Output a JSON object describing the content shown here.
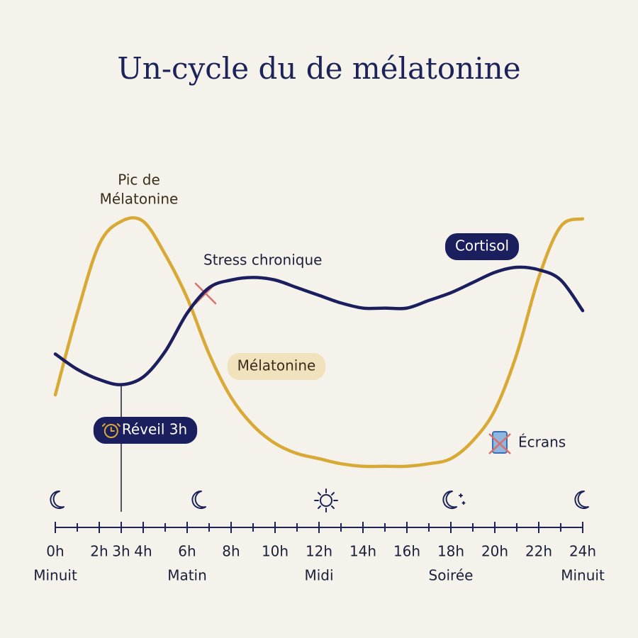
{
  "chart_data": {
    "type": "line",
    "title": "Un-cycle du de mélatonine",
    "x": [
      0,
      1,
      2,
      3,
      4,
      5,
      6,
      7,
      8,
      9,
      10,
      11,
      12,
      13,
      14,
      15,
      16,
      17,
      18,
      19,
      20,
      21,
      22,
      23,
      24
    ],
    "series": [
      {
        "name": "Cortisol",
        "color": "#1b1f5e",
        "values": [
          46,
          40,
          36,
          34,
          37,
          47,
          62,
          72,
          75,
          76,
          75,
          72,
          69,
          66,
          64,
          64,
          64,
          67,
          70,
          74,
          78,
          80,
          79,
          75,
          63
        ]
      },
      {
        "name": "Mélatonine",
        "color": "#d9a935",
        "values": [
          30,
          62,
          89,
          98,
          98,
          85,
          68,
          46,
          29,
          18,
          11,
          7,
          5,
          3,
          2,
          2,
          2,
          3,
          5,
          12,
          24,
          46,
          76,
          96,
          99
        ]
      }
    ],
    "xlim": [
      0,
      24
    ],
    "ylim": [
      0,
      100
    ],
    "xticks": [
      {
        "value": 0,
        "label": "0h"
      },
      {
        "value": 2,
        "label": "2h"
      },
      {
        "value": 3,
        "label": "3h"
      },
      {
        "value": 4,
        "label": "4h"
      },
      {
        "value": 6,
        "label": "6h"
      },
      {
        "value": 8,
        "label": "8h"
      },
      {
        "value": 10,
        "label": "10h"
      },
      {
        "value": 12,
        "label": "12h"
      },
      {
        "value": 14,
        "label": "14h"
      },
      {
        "value": 16,
        "label": "16h"
      },
      {
        "value": 18,
        "label": "18h"
      },
      {
        "value": 20,
        "label": "20h"
      },
      {
        "value": 22,
        "label": "22h"
      },
      {
        "value": 24,
        "label": "24h"
      }
    ],
    "minor_xticks": [
      1,
      5,
      7,
      9,
      11,
      13,
      15,
      17,
      19,
      21,
      23
    ],
    "period_labels": [
      {
        "value": 0,
        "label": "Minuit"
      },
      {
        "value": 6,
        "label": "Matin"
      },
      {
        "value": 12,
        "label": "Midi"
      },
      {
        "value": 18,
        "label": "Soirée"
      },
      {
        "value": 24,
        "label": "Minuit"
      }
    ],
    "annotations": {
      "peak": [
        "Pic de",
        "Mélatonine"
      ],
      "stress": "Stress chronique",
      "wake": {
        "label": "Réveil 3h",
        "x": 3
      },
      "screens": "Écrans"
    }
  }
}
